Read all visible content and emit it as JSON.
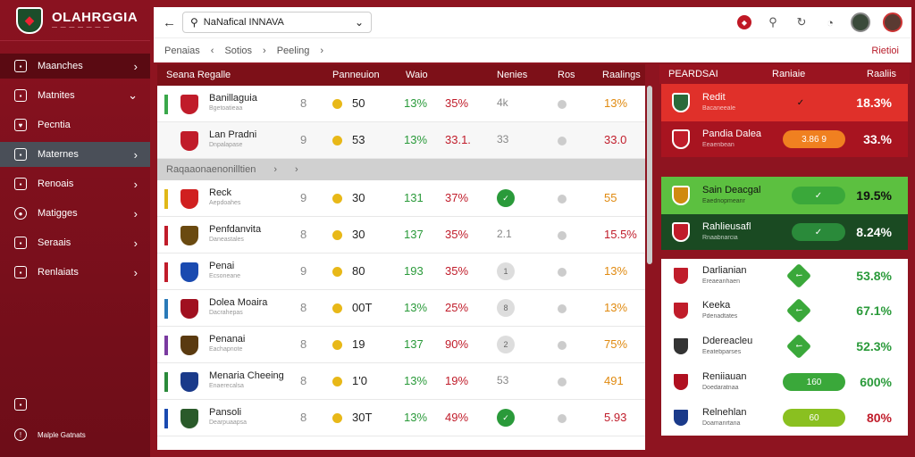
{
  "sidebar": {
    "brand_title": "OLAHRGGIA",
    "brand_sub": "— — — — — — —",
    "items": [
      {
        "label": "Maanches",
        "icon": "flag-icon"
      },
      {
        "label": "Matnites",
        "icon": "briefcase-icon"
      },
      {
        "label": "Pecntia",
        "icon": "heart-icon"
      },
      {
        "label": "Maternes",
        "icon": "chat-icon"
      },
      {
        "label": "Renoais",
        "icon": "document-icon"
      },
      {
        "label": "Matigges",
        "icon": "soccer-ball-icon"
      },
      {
        "label": "Seraais",
        "icon": "gamepad-icon"
      },
      {
        "label": "Renlaiats",
        "icon": "chart-icon"
      }
    ],
    "bottom_icon_label": "",
    "bottom_help": "Malple Gatnats"
  },
  "header": {
    "search_value": "NaNafical INNAVA",
    "crumbs": [
      "Penaias",
      "‹",
      "Sotios",
      "›",
      "Peeling",
      "›"
    ],
    "crumb_right": "Rietioi"
  },
  "table": {
    "headers": [
      "Seana Regalle",
      "Panneuion",
      "Waio",
      "Nenies",
      "Ros",
      "Raalings"
    ],
    "group_label": "Raqaaonaenonilltien",
    "rows": [
      {
        "name": "Banillaguia",
        "sub": "Bgetoatieaa",
        "bar": "#3aa84a",
        "badge": "#c01c2a",
        "c1": "8",
        "c2": "50",
        "pct1": "13%",
        "pct2": "35%",
        "misc": "4k",
        "rating": "13%",
        "rcolor": "orange"
      },
      {
        "name": "Lan Pradni",
        "sub": "Dnpalapase",
        "bar": "",
        "badge": "#c01c2a",
        "c1": "9",
        "c2": "53",
        "pct1": "13%",
        "pct2": "33.1.",
        "misc": "33",
        "rating": "33.0",
        "rcolor": "red"
      },
      {
        "name": "Reck",
        "sub": "Aepdoahes",
        "bar": "#e0b818",
        "badge": "#d02020",
        "c1": "9",
        "c2": "30",
        "pct1": "131",
        "pct2": "37%",
        "misc": "",
        "rating": "55",
        "rcolor": "orange"
      },
      {
        "name": "Penfdanvita",
        "sub": "Daneastales",
        "bar": "#c01c2a",
        "badge": "#6a4a10",
        "c1": "8",
        "c2": "30",
        "pct1": "137",
        "pct2": "35%",
        "misc": "2.1",
        "rating": "15.5%",
        "rcolor": "red"
      },
      {
        "name": "Penai",
        "sub": "Ecsoneane",
        "bar": "#c01c2a",
        "badge": "#1a4ab0",
        "c1": "9",
        "c2": "80",
        "pct1": "193",
        "pct2": "35%",
        "misc": "1",
        "rating": "13%",
        "rcolor": "orange"
      },
      {
        "name": "Dolea Moaira",
        "sub": "Dacrahepas",
        "bar": "#2a7ab8",
        "badge": "#a01020",
        "c1": "8",
        "c2": "00T",
        "pct1": "13%",
        "pct2": "25%",
        "misc": "8",
        "rating": "13%",
        "rcolor": "orange"
      },
      {
        "name": "Penanai",
        "sub": "Eachapnote",
        "bar": "#7a3aa0",
        "badge": "#5a3a10",
        "c1": "8",
        "c2": "19",
        "pct1": "137",
        "pct2": "90%",
        "misc": "2",
        "rating": "75%",
        "rcolor": "orange"
      },
      {
        "name": "Menaria Cheeing",
        "sub": "Enaerecalsa",
        "bar": "#2a8a3a",
        "badge": "#1a3a8a",
        "c1": "8",
        "c2": "1'0",
        "pct1": "13%",
        "pct2": "19%",
        "misc": "53",
        "rating": "491",
        "rcolor": "orange"
      },
      {
        "name": "Pansoli",
        "sub": "Dearpuaapsa",
        "bar": "#1a4ab0",
        "badge": "#2a5a2a",
        "c1": "8",
        "c2": "30T",
        "pct1": "13%",
        "pct2": "49%",
        "misc": "",
        "rating": "5.93",
        "rcolor": "red"
      }
    ]
  },
  "right_panel": {
    "headers": [
      "PEARDSAI",
      "Raniaie",
      "Raaliis"
    ],
    "rows": [
      {
        "name": "Redit",
        "sub": "Bacaneeale",
        "badge": "#2a6a3a",
        "icon": "check-icon",
        "value": "18.3%"
      },
      {
        "name": "Pandia Dalea",
        "sub": "Eeaenbean",
        "badge": "#c01c2a",
        "pill": "3.86   9",
        "value": "33.%"
      },
      {
        "name": "Sain Deacgal",
        "sub": "Eaednopmeanr",
        "badge": "#d08a10",
        "icon": "check-icon",
        "value": "19.5%"
      },
      {
        "name": "Rahlieusafl",
        "sub": "Rnaabnarcia",
        "badge": "#c01c2a",
        "icon": "check-icon",
        "value": "8.24%"
      },
      {
        "name": "Darlianian",
        "sub": "Ereaeanhaen",
        "badge": "#c01c2a",
        "value": "53.8%"
      },
      {
        "name": "Keeka",
        "sub": "Pdenadtates",
        "badge": "#c01c2a",
        "value": "67.1%"
      },
      {
        "name": "Ddereacleu",
        "sub": "Eeatebparses",
        "badge": "#333",
        "value": "52.3%"
      },
      {
        "name": "Reniiauan",
        "sub": "Doedaratnaa",
        "badge": "#b01020",
        "pill": "160",
        "value": "600%"
      },
      {
        "name": "Relnehlan",
        "sub": "Doamanrtana",
        "badge": "#1a3a8a",
        "pill": "60",
        "value": "80%"
      }
    ]
  }
}
